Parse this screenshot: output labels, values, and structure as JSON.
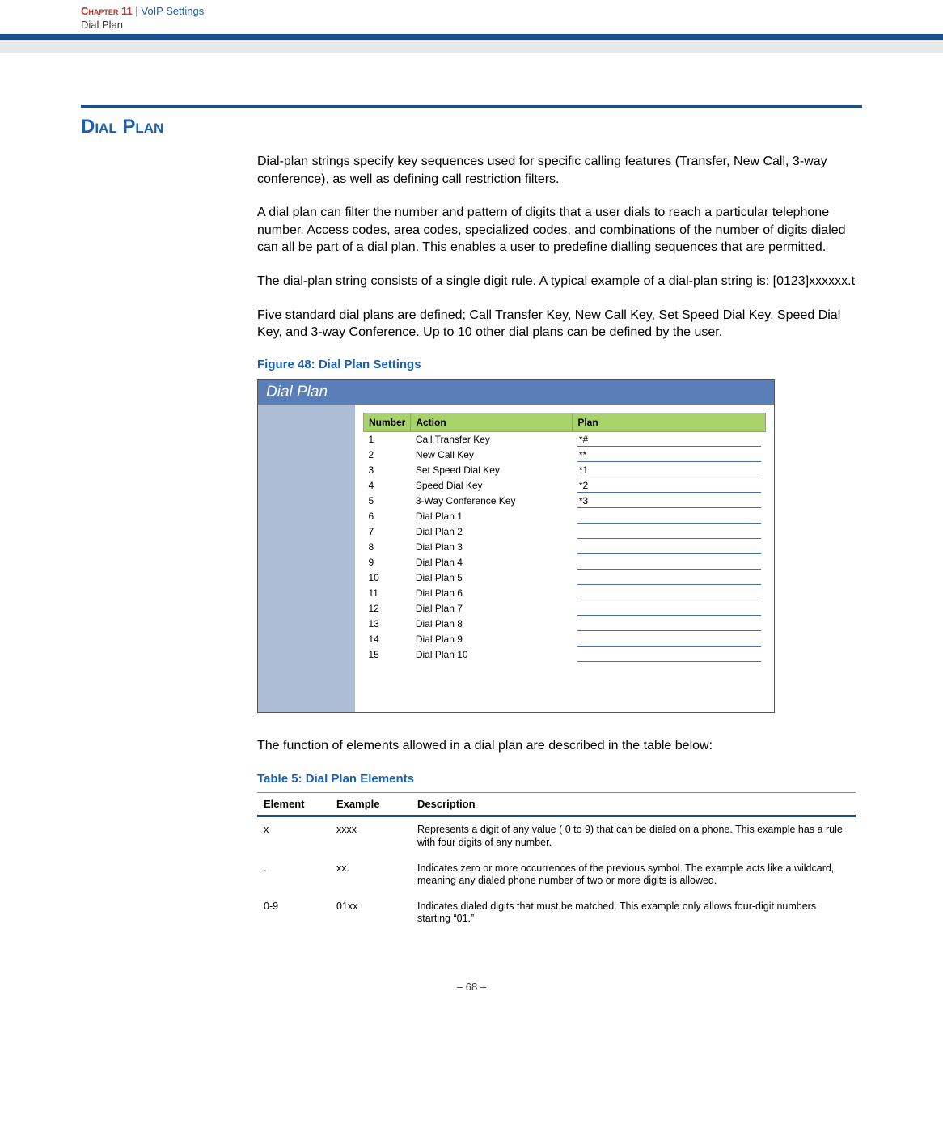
{
  "header": {
    "chapter_label": "Chapter 11",
    "separator": "|",
    "chapter_title": "VoIP Settings",
    "breadcrumb": "Dial Plan"
  },
  "section": {
    "title": "Dial Plan"
  },
  "paragraphs": {
    "p1": "Dial-plan strings specify key sequences used for specific calling features (Transfer, New Call, 3-way conference), as well as defining call restriction filters.",
    "p2": "A dial plan can filter the number and pattern of digits that a user dials to reach a particular telephone number. Access codes, area codes, specialized codes, and combinations of the number of digits dialed can all be part of a dial plan. This enables a user to predefine dialling sequences that are permitted.",
    "p3": "The dial-plan string consists of a single digit rule. A typical example of a dial-plan string is: [0123]xxxxxx.t",
    "p4": "Five standard dial plans are defined; Call Transfer Key, New Call Key, Set Speed Dial Key, Speed Dial Key, and 3-way Conference. Up to 10 other dial plans can be defined by the user."
  },
  "figure": {
    "caption": "Figure 48:  Dial Plan Settings",
    "panel_title": "Dial Plan",
    "columns": {
      "number": "Number",
      "action": "Action",
      "plan": "Plan"
    },
    "rows": [
      {
        "n": "1",
        "action": "Call Transfer Key",
        "plan": "*#"
      },
      {
        "n": "2",
        "action": "New Call Key",
        "plan": "**"
      },
      {
        "n": "3",
        "action": "Set Speed Dial Key",
        "plan": "*1"
      },
      {
        "n": "4",
        "action": "Speed Dial Key",
        "plan": "*2"
      },
      {
        "n": "5",
        "action": "3-Way Conference Key",
        "plan": "*3"
      },
      {
        "n": "6",
        "action": "Dial Plan 1",
        "plan": ""
      },
      {
        "n": "7",
        "action": "Dial Plan 2",
        "plan": ""
      },
      {
        "n": "8",
        "action": "Dial Plan 3",
        "plan": ""
      },
      {
        "n": "9",
        "action": "Dial Plan 4",
        "plan": ""
      },
      {
        "n": "10",
        "action": "Dial Plan 5",
        "plan": ""
      },
      {
        "n": "11",
        "action": "Dial Plan 6",
        "plan": ""
      },
      {
        "n": "12",
        "action": "Dial Plan 7",
        "plan": ""
      },
      {
        "n": "13",
        "action": "Dial Plan 8",
        "plan": ""
      },
      {
        "n": "14",
        "action": "Dial Plan 9",
        "plan": ""
      },
      {
        "n": "15",
        "action": "Dial Plan 10",
        "plan": ""
      }
    ]
  },
  "after_figure": "The function of elements allowed in a dial plan are described in the table below:",
  "table5": {
    "caption": "Table 5: Dial Plan Elements",
    "columns": {
      "element": "Element",
      "example": "Example",
      "description": "Description"
    },
    "rows": [
      {
        "element": "x",
        "example": "xxxx",
        "description": "Represents a digit of any value ( 0 to 9) that can be dialed on a phone. This example has a rule with four digits of any number."
      },
      {
        "element": ".",
        "example": "xx.",
        "description": "Indicates zero or more occurrences of the previous symbol. The example acts like a wildcard, meaning any dialed phone number of two or more digits is allowed."
      },
      {
        "element": "0-9",
        "example": "01xx",
        "description": "Indicates dialed digits that must be matched. This example only allows four-digit numbers starting “01.”"
      }
    ]
  },
  "footer": {
    "page": "–  68  –"
  },
  "colors": {
    "accent_blue": "#1a4f8f",
    "link_blue": "#1a5fb4",
    "chapter_red": "#b33a2f",
    "header_gray": "#e8e8e8",
    "panel_blue": "#5a7fb8",
    "sidebar_lavender": "#aebdd6",
    "header_green": "#a8d36a"
  }
}
